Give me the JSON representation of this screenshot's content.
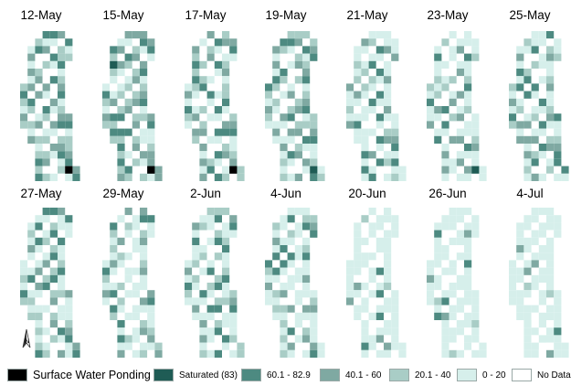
{
  "panels": [
    {
      "label": "12-May"
    },
    {
      "label": "15-May"
    },
    {
      "label": "17-May"
    },
    {
      "label": "19-May"
    },
    {
      "label": "21-May"
    },
    {
      "label": "23-May"
    },
    {
      "label": "25-May"
    },
    {
      "label": "27-May"
    },
    {
      "label": "29-May"
    },
    {
      "label": "2-Jun"
    },
    {
      "label": "4-Jun"
    },
    {
      "label": "20-Jun"
    },
    {
      "label": "26-Jun"
    },
    {
      "label": "4-Jul"
    }
  ],
  "classes": {
    "ponding": {
      "color": "#000000"
    },
    "saturated": {
      "color": "#1f5c55"
    },
    "c60": {
      "color": "#4d8a81"
    },
    "c40": {
      "color": "#7fa9a2"
    },
    "c20": {
      "color": "#a9cdc6"
    },
    "c0": {
      "color": "#d6efeb"
    },
    "nodata": {
      "color": "#ffffff"
    }
  },
  "legend": [
    {
      "label": "Surface Water Ponding",
      "color": "#000000"
    },
    {
      "label": "Saturated (83)",
      "color": "#1f5c55"
    },
    {
      "label": "60.1 - 82.9",
      "color": "#4d8a81"
    },
    {
      "label": "40.1 - 60",
      "color": "#7fa9a2"
    },
    {
      "label": "20.1 - 40",
      "color": "#a9cdc6"
    },
    {
      "label": "0 - 20",
      "color": "#d6efeb"
    },
    {
      "label": "No Data",
      "color": "#ffffff"
    }
  ],
  "north_arrow": {
    "label": "N"
  }
}
